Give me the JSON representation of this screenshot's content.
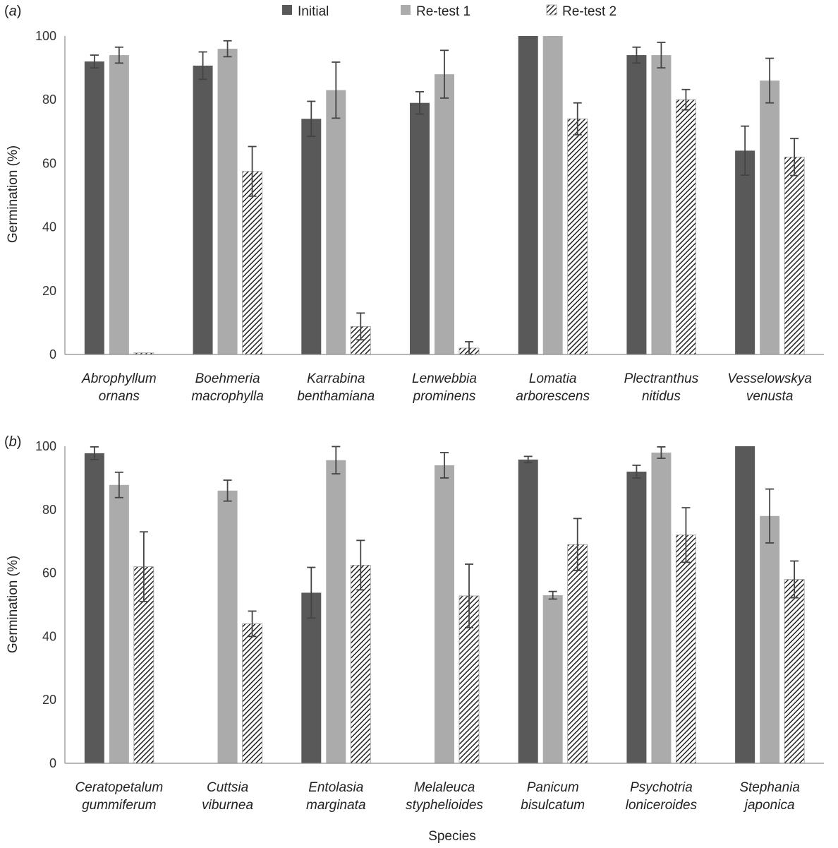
{
  "legend": [
    "Initial",
    "Re-test 1",
    "Re-test 2"
  ],
  "colors": {
    "initial": "#595959",
    "retest1": "#ababab",
    "retest2_stroke": "#222222",
    "retest2_bg": "#ffffff",
    "axis": "#8c8c8c",
    "error": "#444444"
  },
  "x_axis_title": "Species",
  "chart_data": [
    {
      "type": "bar",
      "panel": "(a)",
      "panel_letter": "a",
      "ylabel": "Germination (%)",
      "ylim": [
        0,
        100
      ],
      "yticks": [
        0,
        20,
        40,
        60,
        80,
        100
      ],
      "categories": [
        [
          "Abrophyllum",
          "ornans"
        ],
        [
          "Boehmeria",
          "macrophylla"
        ],
        [
          "Karrabina",
          "benthamiana"
        ],
        [
          "Lenwebbia",
          "prominens"
        ],
        [
          "Lomatia",
          "arborescens"
        ],
        [
          "Plectranthus",
          "nitidus"
        ],
        [
          "Vesselowskya",
          "venusta"
        ]
      ],
      "series": [
        {
          "name": "Initial",
          "values": [
            92,
            90.7,
            74,
            79,
            100,
            94,
            64
          ],
          "errors": [
            2,
            4.3,
            5.5,
            3.5,
            0,
            2.5,
            7.7
          ]
        },
        {
          "name": "Re-test 1",
          "values": [
            94,
            96,
            83,
            88,
            100,
            94,
            86
          ],
          "errors": [
            2.5,
            2.5,
            8.8,
            7.5,
            0,
            4,
            7
          ]
        },
        {
          "name": "Re-test 2",
          "values": [
            0.5,
            57.5,
            8.8,
            2,
            74,
            80,
            62
          ],
          "errors": [
            0,
            7.8,
            4.2,
            2,
            5,
            3.2,
            5.8
          ]
        }
      ]
    },
    {
      "type": "bar",
      "panel": "(b)",
      "panel_letter": "b",
      "ylabel": "Germination (%)",
      "ylim": [
        0,
        100
      ],
      "yticks": [
        0,
        20,
        40,
        60,
        80,
        100
      ],
      "categories": [
        [
          "Ceratopetalum",
          "gummiferum"
        ],
        [
          "Cuttsia",
          "viburnea"
        ],
        [
          "Entolasia",
          "marginata"
        ],
        [
          "Melaleuca",
          "styphelioides"
        ],
        [
          "Panicum",
          "bisulcatum"
        ],
        [
          "Psychotria",
          "loniceroides"
        ],
        [
          "Stephania",
          "japonica"
        ]
      ],
      "series": [
        {
          "name": "Initial",
          "values": [
            97.8,
            0,
            53.8,
            0,
            95.8,
            92,
            100
          ],
          "errors": [
            2,
            0,
            8,
            0,
            1,
            2,
            0
          ]
        },
        {
          "name": "Re-test 1",
          "values": [
            87.8,
            86,
            95.6,
            94,
            53,
            98,
            78
          ],
          "errors": [
            4,
            3.3,
            4.3,
            4,
            1.2,
            1.8,
            8.5
          ]
        },
        {
          "name": "Re-test 2",
          "values": [
            62,
            44,
            62.5,
            52.8,
            69,
            72,
            58
          ],
          "errors": [
            11,
            4,
            7.8,
            10,
            8.2,
            8.6,
            5.8
          ]
        }
      ]
    }
  ]
}
